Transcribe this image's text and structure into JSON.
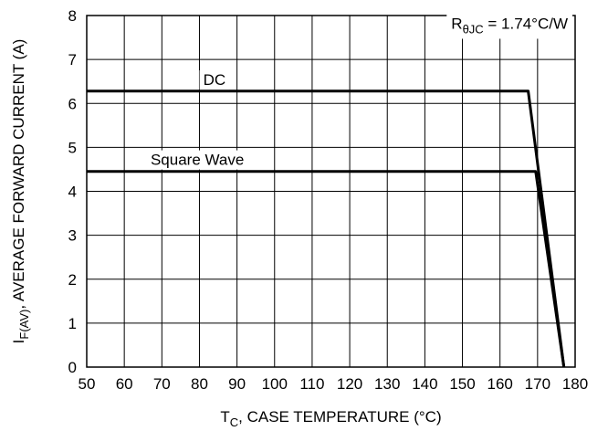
{
  "chart_data": {
    "type": "line",
    "title": "",
    "xlabel": {
      "main": "T",
      "sub": "C",
      "rest": ", CASE TEMPERATURE (°C)"
    },
    "ylabel": {
      "main": "I",
      "sub": "F(AV)",
      "rest": ", AVERAGE FORWARD CURRENT (A)"
    },
    "xlim": [
      50,
      180
    ],
    "ylim": [
      0,
      8
    ],
    "x_ticks": [
      50,
      60,
      70,
      80,
      90,
      100,
      110,
      120,
      130,
      140,
      150,
      160,
      170,
      180
    ],
    "y_ticks": [
      0,
      1,
      2,
      3,
      4,
      5,
      6,
      7,
      8
    ],
    "grid": true,
    "series": [
      {
        "name": "DC",
        "x": [
          50,
          167.5,
          177
        ],
        "y": [
          6.28,
          6.28,
          0
        ]
      },
      {
        "name": "Square Wave",
        "x": [
          50,
          169.5,
          177
        ],
        "y": [
          4.45,
          4.45,
          0
        ]
      }
    ],
    "annotations": {
      "rth": {
        "main": "R",
        "sub": "θJC",
        "rest": " = 1.74°C/W"
      }
    },
    "colors": {
      "line": "#000000",
      "grid": "#000000",
      "background": "#ffffff"
    }
  }
}
